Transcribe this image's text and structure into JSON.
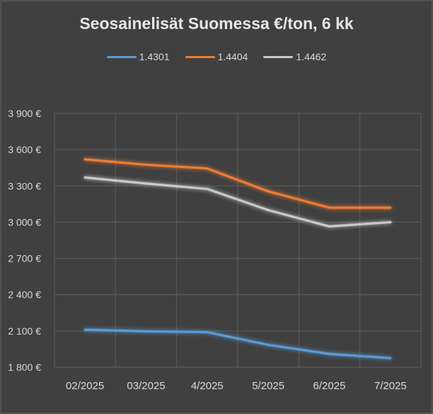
{
  "chart_data": {
    "type": "line",
    "title": "Seosainelisät Suomessa €/ton, 6 kk",
    "categories": [
      "02/2025",
      "03/2025",
      "4/2025",
      "5/2025",
      "6/2025",
      "7/2025"
    ],
    "series": [
      {
        "name": "1.4301",
        "color": "#5b9bd5",
        "values": [
          2110,
          2097,
          2090,
          1985,
          1910,
          1875
        ]
      },
      {
        "name": "1.4404",
        "color": "#ed7d31",
        "values": [
          3520,
          3475,
          3445,
          3255,
          3120,
          3120
        ]
      },
      {
        "name": "1.4462",
        "color": "#c9c9c9",
        "values": [
          3370,
          3320,
          3275,
          3100,
          2965,
          3000
        ]
      }
    ],
    "y_ticks": [
      "1 800 €",
      "2 100 €",
      "2 400 €",
      "2 700 €",
      "3 000 €",
      "3 300 €",
      "3 600 €",
      "3 900 €"
    ],
    "ylim": [
      1800,
      3900
    ],
    "grid": true,
    "legend_position": "top",
    "xlabel": "",
    "ylabel": ""
  }
}
